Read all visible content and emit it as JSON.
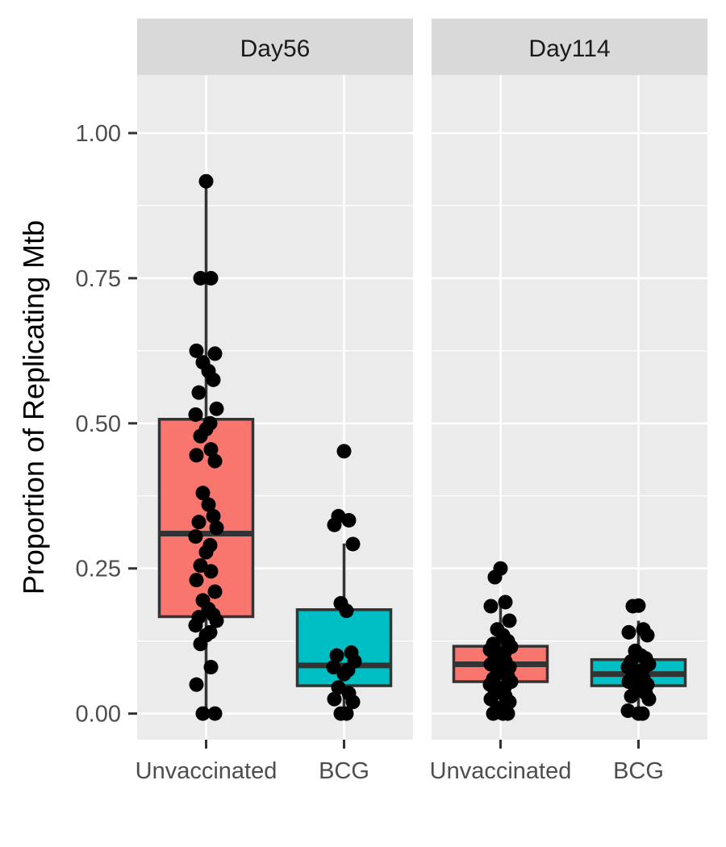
{
  "chart_data": {
    "type": "boxplot",
    "ylabel": "Proportion of Replicating Mtb",
    "xlabel": "",
    "ylim": [
      -0.045,
      1.1
    ],
    "yticks": [
      0,
      0.25,
      0.5,
      0.75,
      1.0
    ],
    "ytick_labels": [
      "0.00",
      "0.25",
      "0.50",
      "0.75",
      "1.00"
    ],
    "categories": [
      "Unvaccinated",
      "BCG"
    ],
    "fill_colors": {
      "Unvaccinated": "#F8766D",
      "BCG": "#00BFC4"
    },
    "legend": "none",
    "grid": true,
    "panels": [
      {
        "facet": "Day56",
        "groups": [
          {
            "category": "Unvaccinated",
            "box": {
              "q1": 0.167,
              "median": 0.31,
              "q3": 0.507,
              "whisker_low": 0.0,
              "whisker_high": 0.917
            },
            "points": [
              0.917,
              0.75,
              0.75,
              0.625,
              0.62,
              0.605,
              0.59,
              0.575,
              0.553,
              0.525,
              0.515,
              0.5,
              0.49,
              0.478,
              0.455,
              0.445,
              0.435,
              0.38,
              0.36,
              0.34,
              0.33,
              0.32,
              0.305,
              0.29,
              0.278,
              0.255,
              0.245,
              0.23,
              0.21,
              0.195,
              0.18,
              0.17,
              0.166,
              0.16,
              0.152,
              0.14,
              0.135,
              0.12,
              0.08,
              0.05,
              0.0,
              0.0
            ]
          },
          {
            "category": "BCG",
            "box": {
              "q1": 0.048,
              "median": 0.083,
              "q3": 0.179,
              "whisker_low": 0.0,
              "whisker_high": 0.293
            },
            "points": [
              0.452,
              0.34,
              0.333,
              0.325,
              0.292,
              0.19,
              0.177,
              0.105,
              0.1,
              0.09,
              0.08,
              0.075,
              0.068,
              0.045,
              0.035,
              0.025,
              0.02,
              0.0,
              0.0
            ]
          }
        ]
      },
      {
        "facet": "Day114",
        "groups": [
          {
            "category": "Unvaccinated",
            "box": {
              "q1": 0.055,
              "median": 0.085,
              "q3": 0.116,
              "whisker_low": 0.0,
              "whisker_high": 0.19
            },
            "points": [
              0.25,
              0.235,
              0.192,
              0.185,
              0.16,
              0.145,
              0.135,
              0.125,
              0.12,
              0.115,
              0.11,
              0.105,
              0.1,
              0.095,
              0.09,
              0.085,
              0.08,
              0.075,
              0.07,
              0.065,
              0.06,
              0.055,
              0.05,
              0.045,
              0.04,
              0.035,
              0.03,
              0.025,
              0.02,
              0.01,
              0.0,
              0.0,
              0.0
            ]
          },
          {
            "category": "BCG",
            "box": {
              "q1": 0.048,
              "median": 0.068,
              "q3": 0.093,
              "whisker_low": 0.0,
              "whisker_high": 0.16
            },
            "points": [
              0.186,
              0.185,
              0.145,
              0.14,
              0.135,
              0.108,
              0.1,
              0.095,
              0.09,
              0.085,
              0.08,
              0.075,
              0.07,
              0.065,
              0.06,
              0.055,
              0.05,
              0.045,
              0.04,
              0.035,
              0.03,
              0.025,
              0.005,
              0.0,
              0.0
            ]
          }
        ]
      }
    ]
  }
}
